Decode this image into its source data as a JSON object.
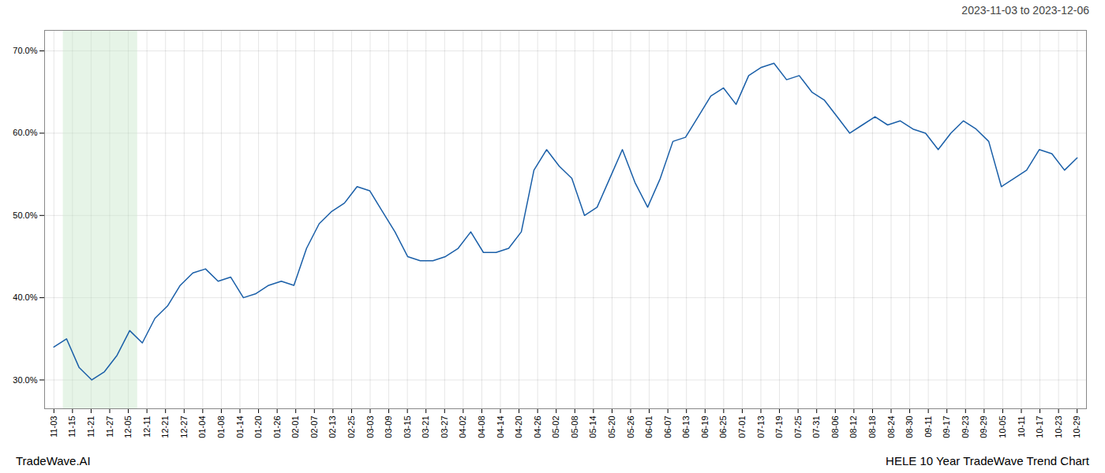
{
  "chart_data": {
    "type": "line",
    "title": "HELE 10 Year TradeWave Trend Chart",
    "subtitle": "2023-11-03 to 2023-12-06",
    "annotation": "TradeWave.AI",
    "color": "#1a5fa8",
    "grid": true,
    "x": [
      0,
      0.679012,
      1.358025,
      2.037037,
      2.716049,
      3.395062,
      4.074074,
      4.753086,
      5.432099,
      6.111111,
      6.790123,
      7.469136,
      8.148148,
      8.82716,
      9.506173,
      10.185185,
      10.864198,
      11.54321,
      12.222222,
      12.901235,
      13.580247,
      14.259259,
      14.938272,
      15.617284,
      16.296296,
      16.975309,
      17.654321,
      18.333333,
      19.012346,
      19.691358,
      20.37037,
      21.049383,
      21.728395,
      22.407407,
      23.08642,
      23.765432,
      24.444444,
      25.123457,
      25.802469,
      26.481481,
      27.160494,
      27.839506,
      28.518519,
      29.197531,
      29.876543,
      30.555556,
      31.234568,
      31.91358,
      32.592593,
      33.271605,
      33.950617,
      34.62963,
      35.308642,
      35.987654,
      36.666667,
      37.345679,
      38.024691,
      38.703704,
      39.382716,
      40.061728,
      40.740741,
      41.419753,
      42.098765,
      42.777778,
      43.45679,
      44.135802,
      44.814815,
      45.493827,
      46.17284,
      46.851852,
      47.530864,
      48.209877,
      48.888889,
      49.567901,
      50.246914,
      50.925926,
      51.604938,
      52.283951,
      52.962963,
      53.641975,
      54.320988,
      55
    ],
    "values": [
      0.34,
      0.35,
      0.315,
      0.3,
      0.31,
      0.33,
      0.36,
      0.345,
      0.375,
      0.39,
      0.415,
      0.43,
      0.435,
      0.42,
      0.425,
      0.4,
      0.405,
      0.415,
      0.42,
      0.415,
      0.46,
      0.49,
      0.505,
      0.515,
      0.535,
      0.53,
      0.505,
      0.48,
      0.45,
      0.445,
      0.445,
      0.45,
      0.46,
      0.48,
      0.455,
      0.455,
      0.46,
      0.48,
      0.555,
      0.58,
      0.56,
      0.545,
      0.5,
      0.51,
      0.545,
      0.58,
      0.54,
      0.51,
      0.545,
      0.59,
      0.595,
      0.62,
      0.645,
      0.655,
      0.635,
      0.67,
      0.68,
      0.685,
      0.665,
      0.67,
      0.65,
      0.64,
      0.62,
      0.6,
      0.61,
      0.62,
      0.61,
      0.615,
      0.605,
      0.6,
      0.58,
      0.6,
      0.615,
      0.605,
      0.59,
      0.535,
      0.545,
      0.555,
      0.58,
      0.575,
      0.555,
      0.57
    ],
    "xlim": [
      -0.5,
      55.5
    ],
    "xticks": [
      {
        "value": 0,
        "label": "11-03"
      },
      {
        "value": 1,
        "label": "11-15"
      },
      {
        "value": 2,
        "label": "11-21"
      },
      {
        "value": 3,
        "label": "11-27"
      },
      {
        "value": 4,
        "label": "12-05"
      },
      {
        "value": 5,
        "label": "12-11"
      },
      {
        "value": 6,
        "label": "12-21"
      },
      {
        "value": 7,
        "label": "12-27"
      },
      {
        "value": 8,
        "label": "01-04"
      },
      {
        "value": 9,
        "label": "01-08"
      },
      {
        "value": 10,
        "label": "01-14"
      },
      {
        "value": 11,
        "label": "01-20"
      },
      {
        "value": 12,
        "label": "01-26"
      },
      {
        "value": 13,
        "label": "02-01"
      },
      {
        "value": 14,
        "label": "02-07"
      },
      {
        "value": 15,
        "label": "02-13"
      },
      {
        "value": 16,
        "label": "02-25"
      },
      {
        "value": 17,
        "label": "03-03"
      },
      {
        "value": 18,
        "label": "03-09"
      },
      {
        "value": 19,
        "label": "03-15"
      },
      {
        "value": 20,
        "label": "03-21"
      },
      {
        "value": 21,
        "label": "03-27"
      },
      {
        "value": 22,
        "label": "04-02"
      },
      {
        "value": 23,
        "label": "04-08"
      },
      {
        "value": 24,
        "label": "04-14"
      },
      {
        "value": 25,
        "label": "04-20"
      },
      {
        "value": 26,
        "label": "04-26"
      },
      {
        "value": 27,
        "label": "05-02"
      },
      {
        "value": 28,
        "label": "05-08"
      },
      {
        "value": 29,
        "label": "05-14"
      },
      {
        "value": 30,
        "label": "05-20"
      },
      {
        "value": 31,
        "label": "05-26"
      },
      {
        "value": 32,
        "label": "06-01"
      },
      {
        "value": 33,
        "label": "06-07"
      },
      {
        "value": 34,
        "label": "06-13"
      },
      {
        "value": 35,
        "label": "06-19"
      },
      {
        "value": 36,
        "label": "06-25"
      },
      {
        "value": 37,
        "label": "07-01"
      },
      {
        "value": 38,
        "label": "07-13"
      },
      {
        "value": 39,
        "label": "07-19"
      },
      {
        "value": 40,
        "label": "07-25"
      },
      {
        "value": 41,
        "label": "07-31"
      },
      {
        "value": 42,
        "label": "08-06"
      },
      {
        "value": 43,
        "label": "08-12"
      },
      {
        "value": 44,
        "label": "08-18"
      },
      {
        "value": 45,
        "label": "08-24"
      },
      {
        "value": 46,
        "label": "08-30"
      },
      {
        "value": 47,
        "label": "09-11"
      },
      {
        "value": 48,
        "label": "09-17"
      },
      {
        "value": 49,
        "label": "09-23"
      },
      {
        "value": 50,
        "label": "09-29"
      },
      {
        "value": 51,
        "label": "10-05"
      },
      {
        "value": 52,
        "label": "10-11"
      },
      {
        "value": 53,
        "label": "10-17"
      },
      {
        "value": 54,
        "label": "10-23"
      },
      {
        "value": 55,
        "label": "10-29"
      }
    ],
    "ylim": [
      0.265,
      0.725
    ],
    "yticks": [
      {
        "value": 0.3,
        "label": "30.0%"
      },
      {
        "value": 0.4,
        "label": "40.0%"
      },
      {
        "value": 0.5,
        "label": "50.0%"
      },
      {
        "value": 0.6,
        "label": "60.0%"
      },
      {
        "value": 0.7,
        "label": "70.0%"
      }
    ],
    "shade": {
      "x_start": 0.5,
      "x_end": 4.5,
      "color": "#c8e6c9"
    }
  }
}
